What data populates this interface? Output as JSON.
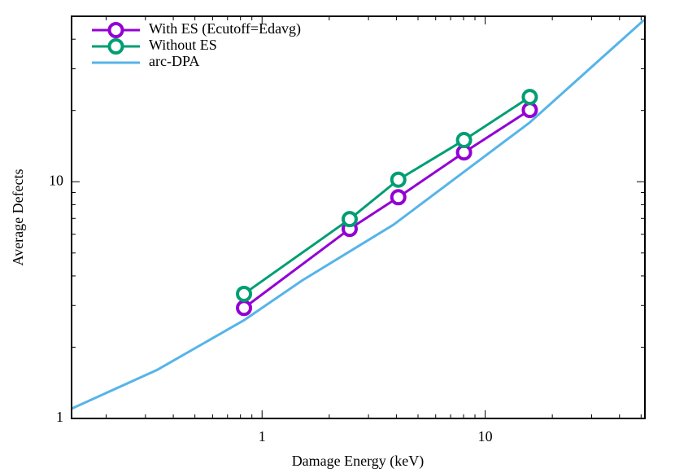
{
  "chart_data": {
    "type": "line",
    "x_label": "Damage Energy (keV)",
    "y_label": "Average Defects",
    "log_x": true,
    "log_y": true,
    "xlim": [
      0.14,
      52
    ],
    "ylim": [
      1,
      50
    ],
    "xticks": [
      1,
      10
    ],
    "yticks": [
      1,
      10
    ],
    "xticks_minor": [
      0.2,
      0.3,
      0.4,
      0.5,
      0.6,
      0.7,
      0.8,
      0.9,
      2,
      3,
      4,
      5,
      6,
      7,
      8,
      9,
      20,
      30,
      40,
      50
    ],
    "yticks_minor": [
      2,
      3,
      4,
      5,
      6,
      7,
      8,
      9,
      20,
      30,
      40
    ],
    "legend": "upper left",
    "series": [
      {
        "name": "With ES (Ecutoff=Edavg)",
        "color": "#9400d3",
        "marker": "circle",
        "x": [
          0.83,
          2.47,
          4.08,
          8.04,
          15.85
        ],
        "values": [
          2.93,
          6.32,
          8.6,
          13.3,
          20.1
        ]
      },
      {
        "name": "Without ES",
        "color": "#009e73",
        "marker": "circle",
        "x": [
          0.83,
          2.47,
          4.08,
          8.04,
          15.85
        ],
        "values": [
          3.36,
          6.95,
          10.2,
          15.0,
          22.8
        ]
      },
      {
        "name": "arc-DPA",
        "color": "#56b4e9",
        "marker": "none",
        "x": [
          0.14,
          0.337,
          0.83,
          1.52,
          3.88,
          15.85,
          51.6
        ],
        "values": [
          1.1,
          1.6,
          2.6,
          3.84,
          6.58,
          17.8,
          48.3
        ]
      }
    ]
  }
}
